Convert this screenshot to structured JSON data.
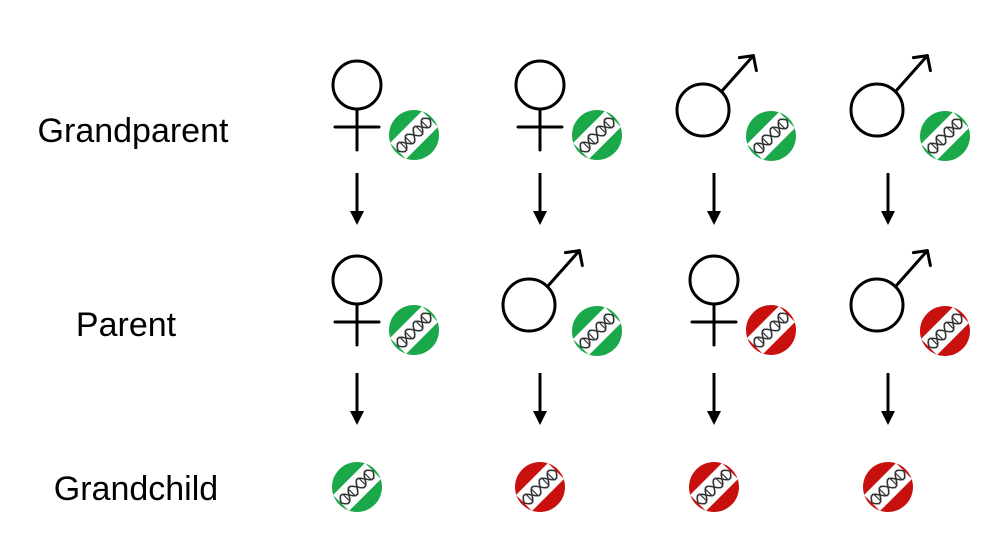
{
  "rows": [
    {
      "label": "Grandparent",
      "label_x": 133,
      "label_y": 142
    },
    {
      "label": "Parent",
      "label_x": 126,
      "label_y": 336
    },
    {
      "label": "Grandchild",
      "label_x": 136,
      "label_y": 500
    }
  ],
  "colors": {
    "healthy": "#1aa84a",
    "mutated": "#c8100e"
  },
  "columns": [
    {
      "grandparent": {
        "sex": "female",
        "dna": "healthy"
      },
      "parent": {
        "sex": "female",
        "dna": "healthy"
      },
      "grandchild": {
        "dna": "healthy"
      }
    },
    {
      "grandparent": {
        "sex": "female",
        "dna": "healthy"
      },
      "parent": {
        "sex": "male",
        "dna": "healthy"
      },
      "grandchild": {
        "dna": "mutated"
      }
    },
    {
      "grandparent": {
        "sex": "male",
        "dna": "healthy"
      },
      "parent": {
        "sex": "female",
        "dna": "mutated"
      },
      "grandchild": {
        "dna": "mutated"
      }
    },
    {
      "grandparent": {
        "sex": "male",
        "dna": "healthy"
      },
      "parent": {
        "sex": "male",
        "dna": "mutated"
      },
      "grandchild": {
        "dna": "mutated"
      }
    }
  ]
}
